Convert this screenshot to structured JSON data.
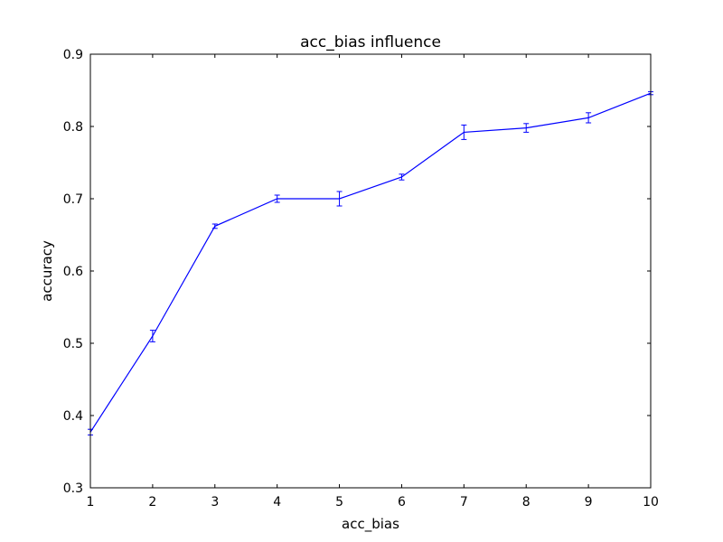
{
  "chart_data": {
    "type": "line",
    "title": "acc_bias influence",
    "xlabel": "acc_bias",
    "ylabel": "accuracy",
    "xlim": [
      1,
      10
    ],
    "ylim": [
      0.3,
      0.9
    ],
    "xticks": [
      "1",
      "2",
      "3",
      "4",
      "5",
      "6",
      "7",
      "8",
      "9",
      "10"
    ],
    "yticks": [
      "0.3",
      "0.4",
      "0.5",
      "0.6",
      "0.7",
      "0.8",
      "0.9"
    ],
    "grid": false,
    "legend": "none",
    "series": [
      {
        "color": "#0000ff",
        "x": [
          1,
          2,
          3,
          4,
          5,
          6,
          7,
          8,
          9,
          10
        ],
        "y": [
          0.377,
          0.51,
          0.662,
          0.7,
          0.7,
          0.73,
          0.792,
          0.798,
          0.812,
          0.846
        ],
        "error": [
          0.004,
          0.008,
          0.003,
          0.005,
          0.01,
          0.004,
          0.01,
          0.006,
          0.007,
          0.002
        ]
      }
    ]
  }
}
